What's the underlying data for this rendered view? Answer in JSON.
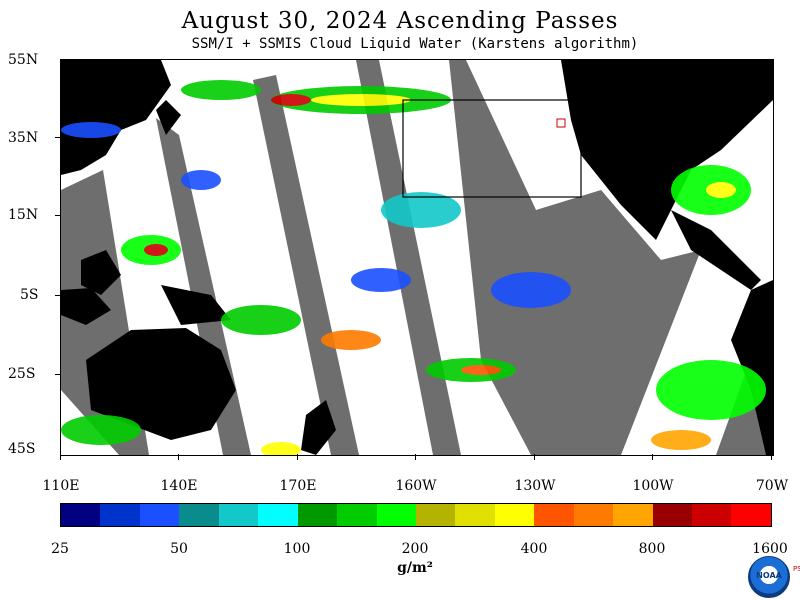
{
  "title": "August 30, 2024  Ascending Passes",
  "subtitle": "SSM/I + SSMIS Cloud Liquid Water (Karstens algorithm)",
  "lat_labels": [
    "55N",
    "35N",
    "15N",
    "5S",
    "25S",
    "45S"
  ],
  "lon_labels": [
    "110E",
    "140E",
    "170E",
    "160W",
    "130W",
    "100W",
    "70W"
  ],
  "colorbar": {
    "colors": [
      "#000080",
      "#0033cc",
      "#1a50ff",
      "#0a8c8c",
      "#12c8c8",
      "#00ffff",
      "#009900",
      "#00cc00",
      "#00ff00",
      "#b3b300",
      "#e0e000",
      "#ffff00",
      "#ff5500",
      "#ff7b00",
      "#ffa500",
      "#990000",
      "#cc0000",
      "#ff0000"
    ],
    "tick_labels": [
      "25",
      "50",
      "100",
      "200",
      "400",
      "800",
      "1600"
    ]
  },
  "units": "g/m²",
  "logo": {
    "text": "NOAA",
    "side_text": "PSL"
  },
  "colors": {
    "land": "#000000",
    "no_data": "#6e6e6e",
    "background": "#ffffff"
  }
}
